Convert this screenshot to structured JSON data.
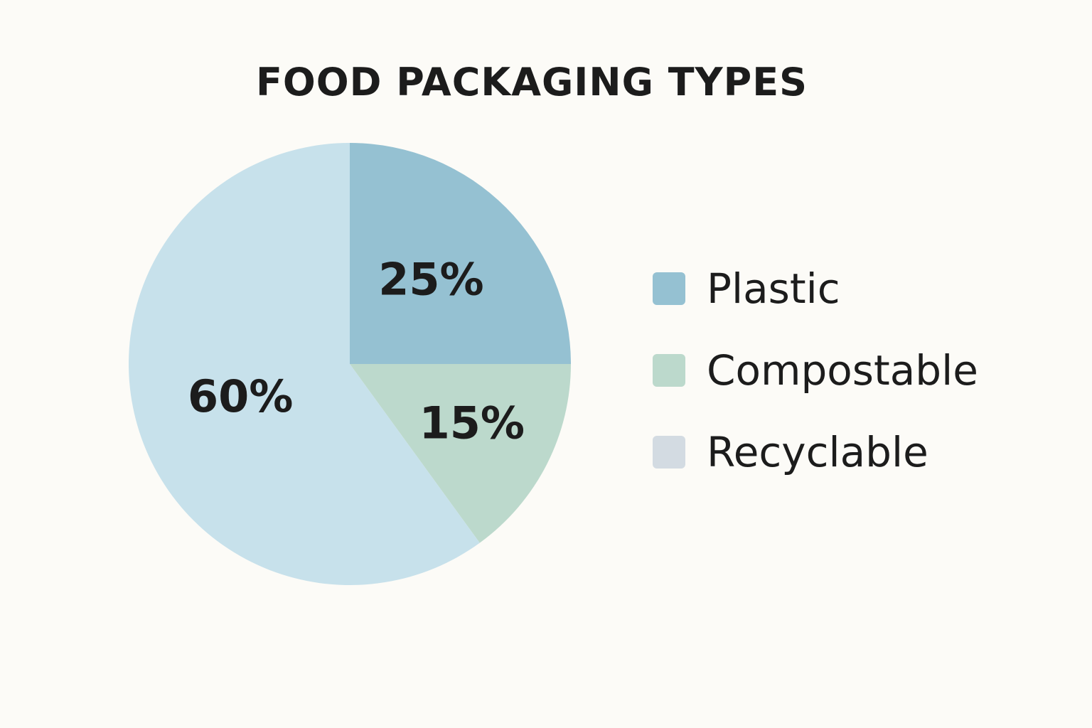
{
  "chart_data": {
    "type": "pie",
    "title": "FOOD PACKAGING TYPES",
    "slices": [
      {
        "label": "25%",
        "value": 25,
        "color": "#95c1d2"
      },
      {
        "label": "15%",
        "value": 15,
        "color": "#bcd9cc"
      },
      {
        "label": "60%",
        "value": 60,
        "color": "#c7e1eb"
      }
    ],
    "legend": {
      "placement": "right",
      "entries": [
        {
          "name": "Plastic",
          "color": "#95c1d2"
        },
        {
          "name": "Compostable",
          "color": "#bcd9cc"
        },
        {
          "name": "Recyclable",
          "color": "#d3dbe2"
        }
      ]
    }
  }
}
